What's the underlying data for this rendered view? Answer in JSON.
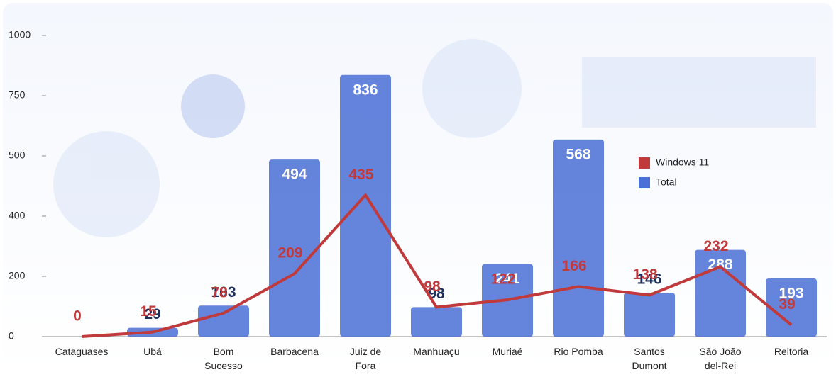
{
  "chart_data": {
    "type": "bar",
    "categories": [
      "Cataguases",
      "Ubá",
      "Bom\nSucesso",
      "Barbacena",
      "Juiz de\nFora",
      "Manhuaçu",
      "Muriaé",
      "Rio Pomba",
      "Santos\nDumont",
      "São João\ndel-Rei",
      "Reitoria"
    ],
    "series": [
      {
        "name": "Windows 11",
        "color": "#c0393b",
        "kind": "line",
        "values": [
          0,
          15,
          78,
          209,
          435,
          98,
          122,
          166,
          138,
          232,
          39
        ]
      },
      {
        "name": "Total",
        "color": "#4a6fd6",
        "kind": "bar",
        "values": [
          null,
          29,
          103,
          494,
          836,
          98,
          241,
          568,
          146,
          288,
          193
        ]
      }
    ],
    "ylim": [
      0,
      1000
    ],
    "yticks": [
      0,
      200,
      400,
      500,
      750,
      1000
    ],
    "legend": "upper right"
  }
}
